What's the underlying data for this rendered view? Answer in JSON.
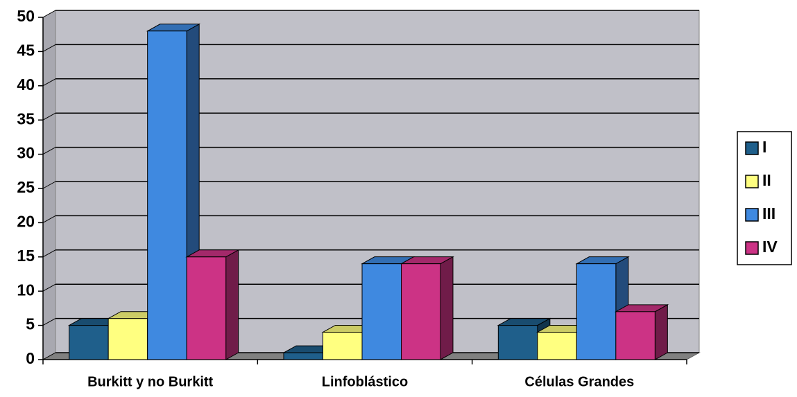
{
  "chart_data": {
    "type": "bar3d",
    "categories": [
      "Burkitt y no Burkitt",
      "Linfoblástico",
      "Células Grandes"
    ],
    "series": [
      {
        "name": "I",
        "color": "#1f5f8b",
        "values": [
          5,
          1,
          5
        ]
      },
      {
        "name": "II",
        "color": "#ffff80",
        "values": [
          6,
          4,
          4
        ]
      },
      {
        "name": "III",
        "color": "#3f89e0",
        "values": [
          48,
          14,
          14
        ]
      },
      {
        "name": "IV",
        "color": "#cc3385",
        "values": [
          15,
          14,
          7
        ]
      }
    ],
    "ylim": [
      0,
      50
    ],
    "yticks": [
      0,
      5,
      10,
      15,
      20,
      25,
      30,
      35,
      40,
      45,
      50
    ],
    "grid": true,
    "legend": "right"
  }
}
